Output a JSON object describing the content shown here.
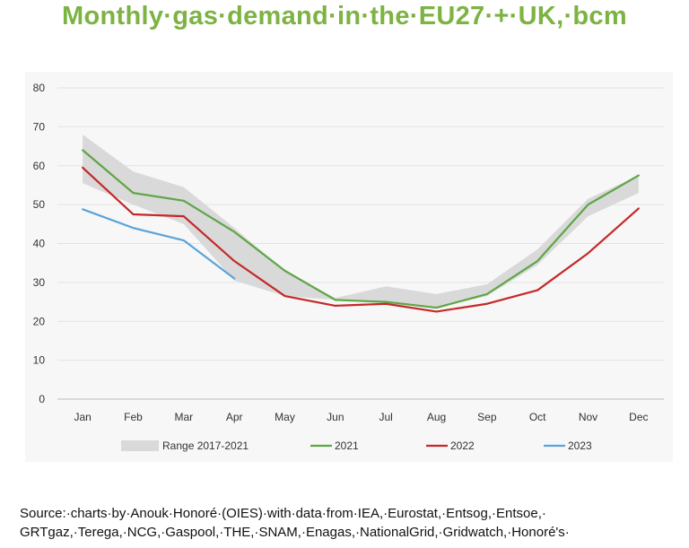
{
  "title": "Monthly·gas·demand·in·the·EU27·+·UK,·bcm",
  "source": "Source:·charts·by·Anouk·Honoré·(OIES)·with·data·from·IEA,·Eurostat,·Entsog,·Entsoe,· GRTgaz,·Terega,·NCG,·Gaspool,·THE,·SNAM,·Enagas,·NationalGrid,·Gridwatch,·Honoré's·",
  "colors": {
    "title": "#7cb342",
    "range": "#d9d9d9",
    "s2021": "#5fa646",
    "s2022": "#c62828",
    "s2023": "#5ba3d9"
  },
  "chart_data": {
    "type": "line",
    "categories": [
      "Jan",
      "Feb",
      "Mar",
      "Apr",
      "May",
      "Jun",
      "Jul",
      "Aug",
      "Sep",
      "Oct",
      "Nov",
      "Dec"
    ],
    "ylim": [
      0,
      80
    ],
    "yticks": [
      0,
      10,
      20,
      30,
      40,
      50,
      60,
      70,
      80
    ],
    "grid": true,
    "legend_position": "bottom",
    "range": {
      "name": "Range 2017-2021",
      "low": [
        55.5,
        50,
        45,
        30.5,
        26.5,
        25.5,
        24.5,
        23.5,
        26.5,
        34.5,
        47,
        53
      ],
      "high": [
        68,
        58.5,
        54.5,
        44,
        33,
        26,
        29,
        27,
        29.5,
        38.5,
        51.5,
        57.5
      ]
    },
    "series": [
      {
        "name": "2021",
        "values": [
          64,
          53,
          51,
          43,
          33,
          25.5,
          25,
          23.5,
          27,
          35.5,
          50,
          57.5
        ]
      },
      {
        "name": "2022",
        "values": [
          59.5,
          47.5,
          47,
          35.5,
          26.5,
          24,
          24.5,
          22.5,
          24.5,
          28,
          37.5,
          49
        ]
      },
      {
        "name": "2023",
        "values": [
          48.8,
          44,
          40.8,
          31,
          null,
          null,
          null,
          null,
          null,
          null,
          null,
          null
        ]
      }
    ]
  }
}
